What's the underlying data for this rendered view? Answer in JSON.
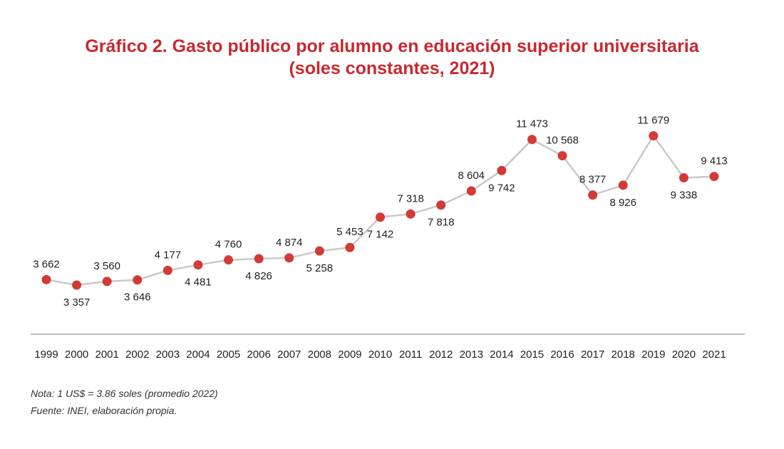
{
  "title_line1": "Gráfico 2. Gasto público por alumno en educación superior universitaria",
  "title_line2": "(soles constantes, 2021)",
  "note": "Nota: 1 US$ = 3.86 soles (promedio 2022)",
  "source": "Fuente: INEI, elaboración propia.",
  "colors": {
    "title": "#c8292e",
    "marker": "#d33a36",
    "line": "#c9c9c9",
    "axis": "#bdbdbd",
    "text": "#222222"
  },
  "chart_data": {
    "type": "line",
    "title": "Gráfico 2. Gasto público por alumno en educación superior universitaria (soles constantes, 2021)",
    "categories": [
      "1999",
      "2000",
      "2001",
      "2002",
      "2003",
      "2004",
      "2005",
      "2006",
      "2007",
      "2008",
      "2009",
      "2010",
      "2011",
      "2012",
      "2013",
      "2014",
      "2015",
      "2016",
      "2017",
      "2018",
      "2019",
      "2020",
      "2021"
    ],
    "values": [
      3662,
      3357,
      3560,
      3646,
      4177,
      4481,
      4760,
      4826,
      4874,
      5258,
      5453,
      7142,
      7318,
      7818,
      8604,
      9742,
      11473,
      10568,
      8377,
      8926,
      11679,
      9338,
      9413
    ],
    "data_labels": [
      "3 662",
      "3 357",
      "3 560",
      "3 646",
      "4 177",
      "4 481",
      "4 760",
      "4 826",
      "4 874",
      "5 258",
      "5 453",
      "7 142",
      "7 318",
      "7 818",
      "8 604",
      "9 742",
      "11 473",
      "10 568",
      "8 377",
      "8 926",
      "11 679",
      "9 338",
      "9 413"
    ],
    "label_position": [
      "above",
      "below",
      "above",
      "below",
      "above",
      "below",
      "above",
      "below",
      "above",
      "below",
      "above",
      "below",
      "above",
      "below",
      "above",
      "below",
      "above",
      "above",
      "above",
      "below",
      "above",
      "below",
      "above"
    ],
    "ylim": [
      0,
      13000
    ],
    "grid": false,
    "legend": "none",
    "xlabel": "",
    "ylabel": ""
  }
}
